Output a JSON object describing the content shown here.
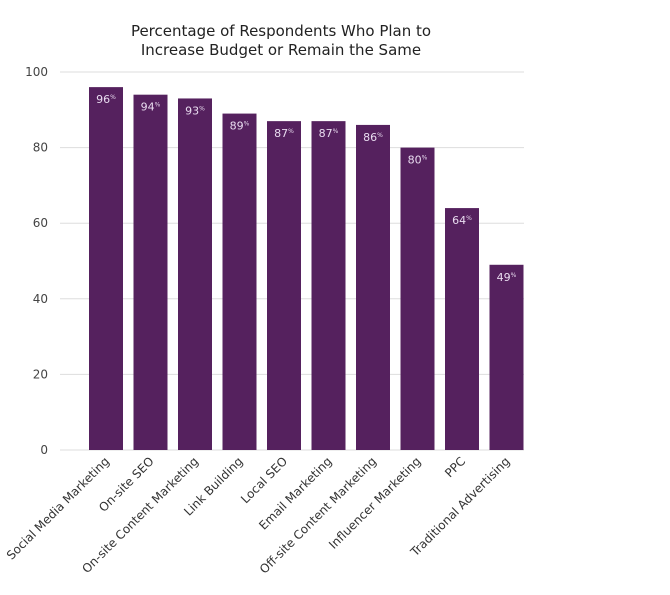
{
  "chart_data": {
    "type": "bar",
    "title": [
      "Percentage of Respondents Who Plan to",
      "Increase Budget or Remain the Same"
    ],
    "categories": [
      "Social Media Marketing",
      "On-site SEO",
      "On-site Content Marketing",
      "Link Building",
      "Local SEO",
      "Email Marketing",
      "Off-site Content Marketing",
      "Influencer Marketing",
      "PPC",
      "Traditional Advertising"
    ],
    "values": [
      96,
      94,
      93,
      89,
      87,
      87,
      86,
      80,
      64,
      49
    ],
    "data_labels": [
      "96",
      "94",
      "93",
      "89",
      "87",
      "87",
      "86",
      "80",
      "64",
      "49"
    ],
    "data_label_suffix": "%",
    "y_ticks": [
      "0",
      "20",
      "40",
      "60",
      "80",
      "100"
    ],
    "ylim": [
      0,
      100
    ],
    "grid": true,
    "bar_color": "#55215e",
    "grid_color": "#dddddd"
  }
}
